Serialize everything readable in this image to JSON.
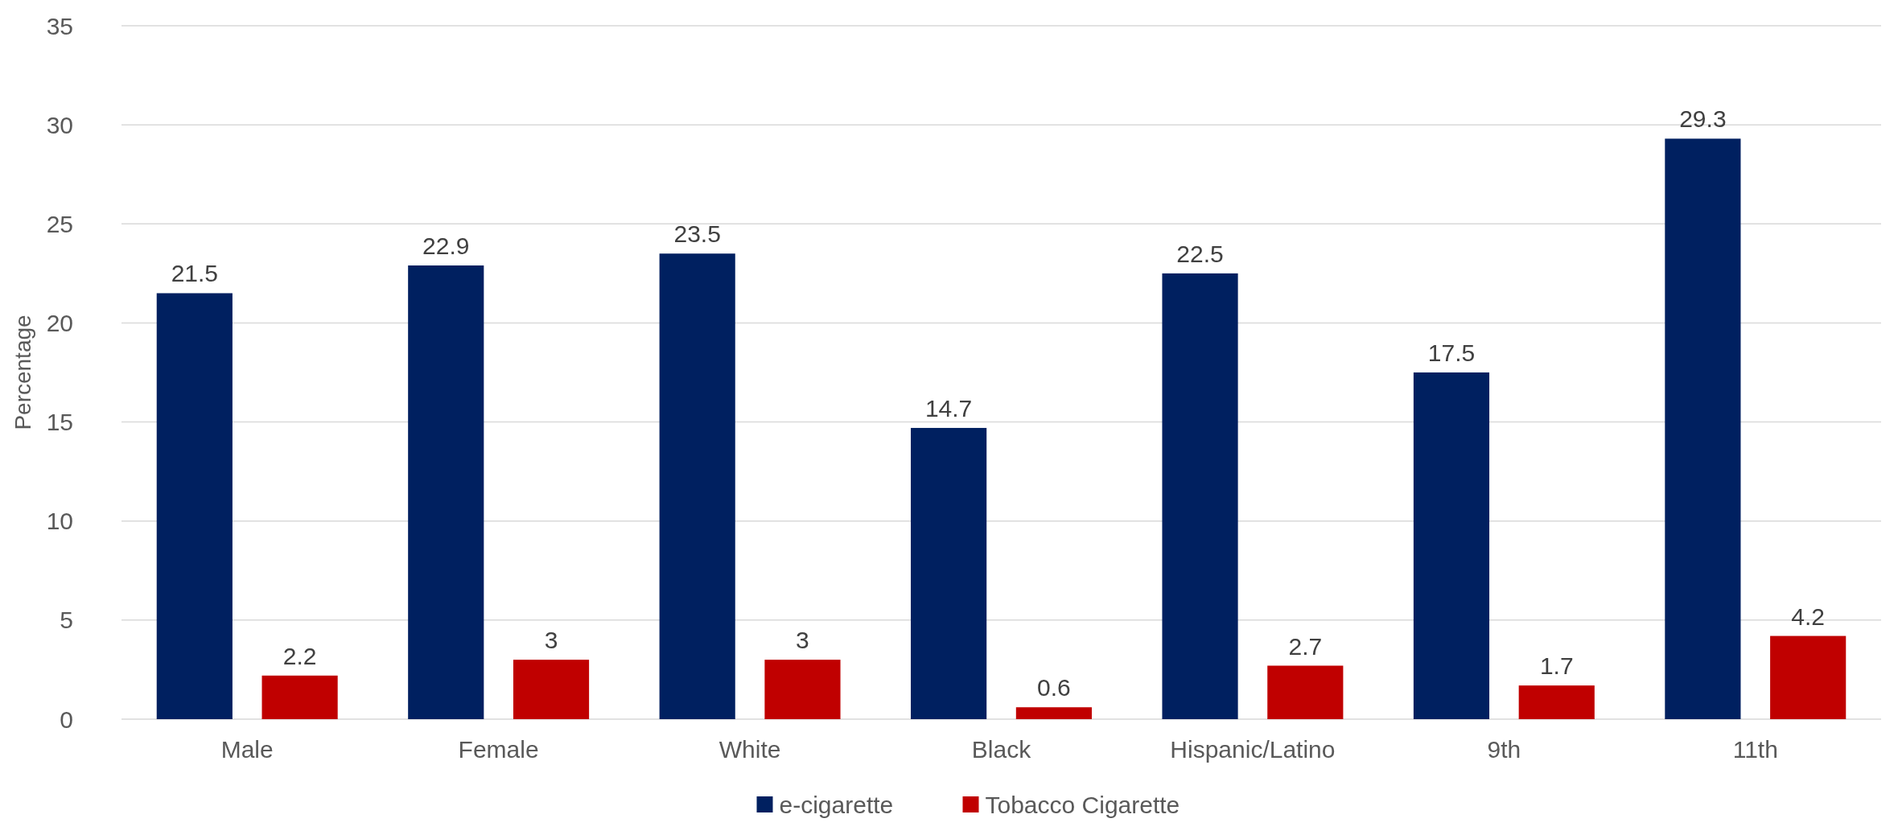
{
  "chart_data": {
    "type": "bar",
    "ylabel": "Percentage",
    "categories": [
      "Male",
      "Female",
      "White",
      "Black",
      "Hispanic/Latino",
      "9th",
      "11th"
    ],
    "series": [
      {
        "name": "e-cigarette",
        "color": "#002060",
        "values": [
          21.5,
          22.9,
          23.5,
          14.7,
          22.5,
          17.5,
          29.3
        ]
      },
      {
        "name": "Tobacco Cigarette",
        "color": "#c00000",
        "values": [
          2.2,
          3,
          3,
          0.6,
          2.7,
          1.7,
          4.2
        ]
      }
    ],
    "ylim": [
      0,
      35
    ],
    "yticks": [
      0,
      5,
      10,
      15,
      20,
      25,
      30,
      35
    ],
    "grid": "y",
    "legend": "bottom",
    "data_labels": true
  }
}
